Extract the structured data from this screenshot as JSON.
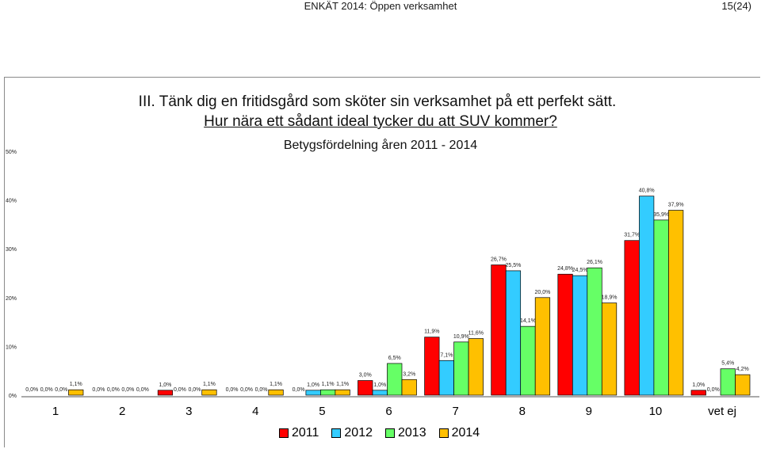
{
  "header": {
    "doc_title": "ENKÄT 2014: Öppen verksamhet",
    "page_number": "15(24)"
  },
  "question": {
    "line1": "III. Tänk dig en fritidsgård som sköter sin verksamhet på ett perfekt sätt.",
    "line2": "Hur nära ett sådant ideal tycker du att SUV kommer?"
  },
  "subtitle": "Betygsfördelning åren 2011 - 2014",
  "chart_data": {
    "type": "bar",
    "title": "Betygsfördelning åren 2011 - 2014",
    "categories": [
      "1",
      "2",
      "3",
      "4",
      "5",
      "6",
      "7",
      "8",
      "9",
      "10",
      "vet ej"
    ],
    "y_ticks": [
      "0%",
      "10%",
      "20%",
      "30%",
      "40%",
      "50%"
    ],
    "ylim": [
      0,
      50
    ],
    "grid": false,
    "legend_position": "bottom",
    "series": [
      {
        "name": "2011",
        "color": "#ff0000",
        "values": [
          0.0,
          0.0,
          1.0,
          0.0,
          0.0,
          3.0,
          11.9,
          26.7,
          24.8,
          31.7,
          1.0
        ],
        "labels": [
          "0,0%",
          "0,0%",
          "1,0%",
          "0,0%",
          "0,0%",
          "3,0%",
          "11,9%",
          "26,7%",
          "24,8%",
          "31,7%",
          "1,0%"
        ]
      },
      {
        "name": "2012",
        "color": "#33ccff",
        "values": [
          0.0,
          0.0,
          0.0,
          0.0,
          1.0,
          1.0,
          7.1,
          25.5,
          24.5,
          40.8,
          0.0
        ],
        "labels": [
          "0,0%",
          "0,0%",
          "0,0%",
          "0,0%",
          "1,0%",
          "1,0%",
          "7,1%",
          "25,5%",
          "24,5%",
          "40,8%",
          "0,0%"
        ]
      },
      {
        "name": "2013",
        "color": "#66ff66",
        "values": [
          0.0,
          0.0,
          0.0,
          0.0,
          1.1,
          6.5,
          10.9,
          14.1,
          26.1,
          35.9,
          5.4
        ],
        "labels": [
          "0,0%",
          "0,0%",
          "0,0%",
          "0,0%",
          "1,1%",
          "6,5%",
          "10,9%",
          "14,1%",
          "26,1%",
          "35,9%",
          "5,4%"
        ]
      },
      {
        "name": "2014",
        "color": "#ffc000",
        "values": [
          1.1,
          0.0,
          1.1,
          1.1,
          1.1,
          3.2,
          11.6,
          20.0,
          18.9,
          37.9,
          4.2
        ],
        "labels": [
          "1,1%",
          "0,0%",
          "1,1%",
          "1,1%",
          "1,1%",
          "3,2%",
          "11,6%",
          "20,0%",
          "18,9%",
          "37,9%",
          "4,2%"
        ]
      }
    ]
  }
}
